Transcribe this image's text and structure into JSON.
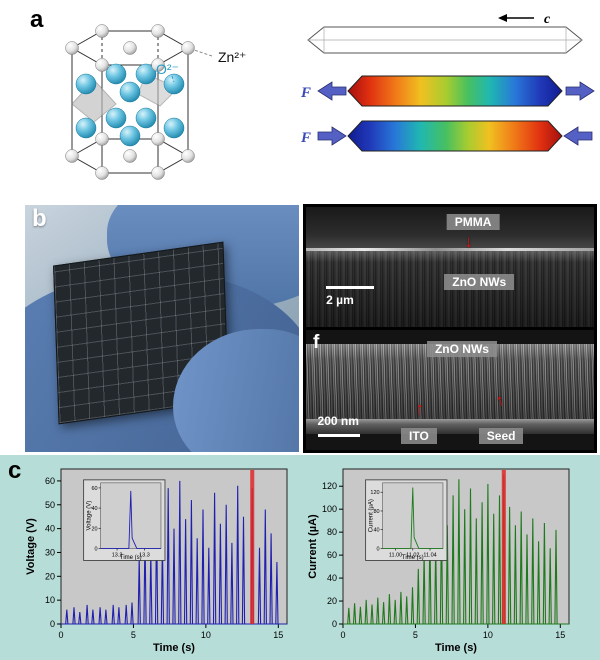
{
  "figure": {
    "panel_a_label": "a",
    "panel_b_label": "b",
    "panel_c_label": "c",
    "panel_f_label": "f",
    "crystal": {
      "zn_label": "Zn²⁺",
      "o_label": "O²⁻"
    },
    "rods": {
      "axis_label": "c",
      "tension_force_label": "F",
      "compression_force_label": "F"
    },
    "sem_top": {
      "pmma_label": "PMMA",
      "zno_label": "ZnO NWs",
      "scale_label": "2 µm"
    },
    "sem_bottom": {
      "zno_label": "ZnO NWs",
      "ito_label": "ITO",
      "seed_label": "Seed",
      "scale_label": "200 nm"
    },
    "icons": {
      "arrow_down": "↓",
      "arrow_up": "↑"
    },
    "colors": {
      "voltage_series": "#2020b0",
      "current_series": "#1d7a1d",
      "highlight": "#e02828",
      "panel_c_bg": "#b7ddd8"
    }
  },
  "chart_data": [
    {
      "type": "line",
      "xlabel": "Time (s)",
      "ylabel": "Voltage (V)",
      "xlim": [
        0,
        15.6
      ],
      "ylim": [
        0,
        65
      ],
      "xticks": {
        "values": [
          0,
          5,
          10,
          15
        ],
        "labels": [
          "0",
          "5",
          "10",
          "15"
        ]
      },
      "yticks": {
        "values": [
          0,
          10,
          20,
          30,
          40,
          50,
          60
        ],
        "labels": [
          "0",
          "10",
          "20",
          "30",
          "40",
          "50",
          "60"
        ]
      },
      "color": "#2020b0",
      "highlight": {
        "x": 13.2,
        "width": 0.28,
        "color": "#e02828"
      },
      "spikes": [
        [
          0.4,
          6
        ],
        [
          0.9,
          7
        ],
        [
          1.3,
          5
        ],
        [
          1.8,
          8
        ],
        [
          2.2,
          6
        ],
        [
          2.7,
          7
        ],
        [
          3.1,
          6
        ],
        [
          3.6,
          8
        ],
        [
          4.0,
          7
        ],
        [
          4.5,
          8
        ],
        [
          4.9,
          9
        ],
        [
          5.4,
          28
        ],
        [
          5.8,
          38
        ],
        [
          6.2,
          30
        ],
        [
          6.6,
          45
        ],
        [
          7.0,
          34
        ],
        [
          7.4,
          57
        ],
        [
          7.8,
          40
        ],
        [
          8.2,
          60
        ],
        [
          8.6,
          44
        ],
        [
          9.0,
          52
        ],
        [
          9.4,
          36
        ],
        [
          9.8,
          48
        ],
        [
          10.2,
          32
        ],
        [
          10.6,
          55
        ],
        [
          11.0,
          42
        ],
        [
          11.4,
          50
        ],
        [
          11.8,
          34
        ],
        [
          12.2,
          58
        ],
        [
          12.6,
          45
        ],
        [
          13.2,
          57
        ],
        [
          13.7,
          32
        ],
        [
          14.1,
          48
        ],
        [
          14.5,
          38
        ],
        [
          14.9,
          26
        ]
      ],
      "inset": {
        "xlabel": "Time (s)",
        "ylabel": "Voltage (V)",
        "xlim": [
          13.14,
          13.36
        ],
        "ylim": [
          0,
          65
        ],
        "xticks": {
          "values": [
            13.2,
            13.3
          ],
          "labels": [
            "13.2",
            "13.3"
          ]
        },
        "yticks": {
          "values": [
            0,
            20,
            40,
            60
          ],
          "labels": [
            "0",
            "20",
            "40",
            "60"
          ]
        },
        "peak": [
          13.25,
          57
        ]
      }
    },
    {
      "type": "line",
      "xlabel": "Time (s)",
      "ylabel": "Current (µA)",
      "xlim": [
        0,
        15.6
      ],
      "ylim": [
        0,
        135
      ],
      "xticks": {
        "values": [
          0,
          5,
          10,
          15
        ],
        "labels": [
          "0",
          "5",
          "10",
          "15"
        ]
      },
      "yticks": {
        "values": [
          0,
          20,
          40,
          60,
          80,
          100,
          120
        ],
        "labels": [
          "0",
          "20",
          "40",
          "60",
          "80",
          "100",
          "120"
        ]
      },
      "color": "#1d7a1d",
      "highlight": {
        "x": 11.1,
        "width": 0.28,
        "color": "#e02828"
      },
      "spikes": [
        [
          0.4,
          14
        ],
        [
          0.8,
          18
        ],
        [
          1.2,
          15
        ],
        [
          1.6,
          21
        ],
        [
          2.0,
          17
        ],
        [
          2.4,
          23
        ],
        [
          2.8,
          19
        ],
        [
          3.2,
          26
        ],
        [
          3.6,
          21
        ],
        [
          4.0,
          28
        ],
        [
          4.4,
          24
        ],
        [
          4.8,
          32
        ],
        [
          5.2,
          48
        ],
        [
          5.6,
          62
        ],
        [
          6.0,
          82
        ],
        [
          6.4,
          70
        ],
        [
          6.8,
          96
        ],
        [
          7.2,
          86
        ],
        [
          7.6,
          112
        ],
        [
          8.0,
          126
        ],
        [
          8.4,
          100
        ],
        [
          8.8,
          118
        ],
        [
          9.2,
          92
        ],
        [
          9.6,
          106
        ],
        [
          10.0,
          122
        ],
        [
          10.4,
          96
        ],
        [
          10.8,
          112
        ],
        [
          11.1,
          130
        ],
        [
          11.5,
          102
        ],
        [
          11.9,
          86
        ],
        [
          12.3,
          98
        ],
        [
          12.7,
          78
        ],
        [
          13.1,
          92
        ],
        [
          13.5,
          72
        ],
        [
          13.9,
          88
        ],
        [
          14.3,
          66
        ],
        [
          14.7,
          82
        ]
      ],
      "inset": {
        "xlabel": "Time (s)",
        "ylabel": "Current (µA)",
        "xlim": [
          10.985,
          11.055
        ],
        "ylim": [
          0,
          140
        ],
        "xticks": {
          "values": [
            11.0,
            11.02,
            11.04
          ],
          "labels": [
            "11.00",
            "11.02",
            "11.04"
          ]
        },
        "yticks": {
          "values": [
            0,
            40,
            80,
            120
          ],
          "labels": [
            "0",
            "40",
            "80",
            "120"
          ]
        },
        "peak": [
          11.02,
          130
        ]
      }
    }
  ]
}
